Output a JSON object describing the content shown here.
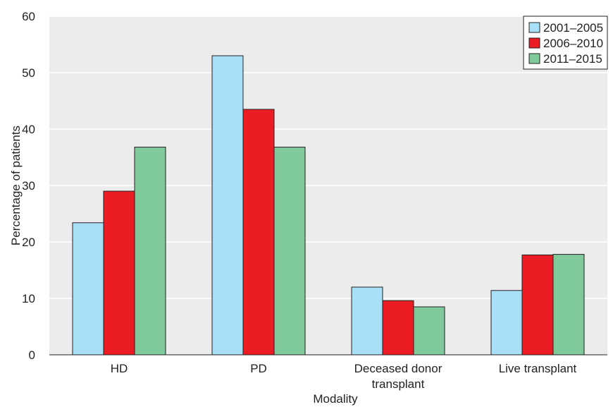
{
  "chart_data": {
    "type": "bar",
    "title": "",
    "xlabel": "Modality",
    "ylabel": "Percentage of patients",
    "ylim": [
      0,
      60
    ],
    "yticks": [
      "0",
      "10",
      "20",
      "30",
      "40",
      "50",
      "60"
    ],
    "categories": [
      [
        "HD"
      ],
      [
        "PD"
      ],
      [
        "Deceased donor",
        "transplant"
      ],
      [
        "Live transplant"
      ]
    ],
    "series": [
      {
        "name": "2001–2005",
        "color": "#a8e0f8",
        "values": [
          23.4,
          53.0,
          12.0,
          11.4
        ]
      },
      {
        "name": "2006–2010",
        "color": "#ec1c24",
        "values": [
          29.0,
          43.5,
          9.6,
          17.7
        ]
      },
      {
        "name": "2011–2015",
        "color": "#7fc99b",
        "values": [
          36.8,
          36.8,
          8.5,
          17.8
        ]
      }
    ],
    "grid": "horizontal",
    "legend_position": "top-right",
    "background": "#ececec"
  }
}
